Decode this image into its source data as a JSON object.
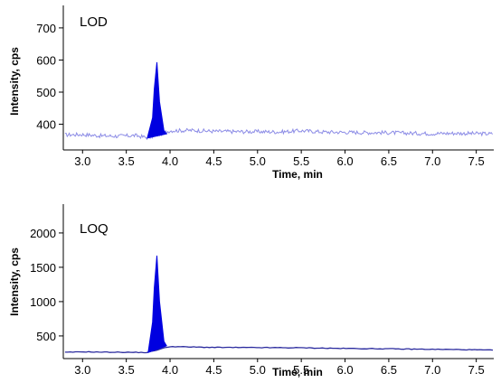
{
  "chart_data": [
    {
      "type": "line",
      "title": "LOD",
      "xlabel": "Time, min",
      "ylabel": "Intensity, cps",
      "xlim": [
        2.78,
        7.7
      ],
      "ylim": [
        320,
        770
      ],
      "x_ticks": [
        3.0,
        3.5,
        4.0,
        4.5,
        5.0,
        5.5,
        6.0,
        6.5,
        7.0,
        7.5
      ],
      "x_tick_labels": [
        "3.0",
        "3.5",
        "4.0",
        "4.5",
        "5.0",
        "5.5",
        "6.0",
        "6.5",
        "7.0",
        "7.5"
      ],
      "y_ticks": [
        400,
        500,
        600,
        700
      ],
      "y_tick_labels": [
        "400",
        "500",
        "600",
        "700"
      ],
      "grid": false,
      "colors": {
        "baseline": "#8c8ce6",
        "peak": "#0000e0"
      },
      "series": [
        {
          "kind": "baseline",
          "x": [
            2.8,
            3.0,
            3.2,
            3.4,
            3.6,
            3.75,
            4.0,
            4.25,
            4.5,
            4.75,
            5.0,
            5.25,
            5.5,
            5.75,
            6.0,
            6.25,
            6.5,
            6.75,
            7.0,
            7.25,
            7.5,
            7.69
          ],
          "values": [
            367,
            368,
            364,
            363,
            365,
            358,
            380,
            381,
            378,
            377,
            377,
            376,
            380,
            376,
            375,
            374,
            374,
            372,
            371,
            372,
            371,
            370
          ]
        },
        {
          "kind": "peak",
          "x": [
            3.74,
            3.8,
            3.82,
            3.85,
            3.88,
            3.93,
            3.96
          ],
          "values": [
            357,
            420,
            510,
            593,
            470,
            380,
            370
          ]
        }
      ]
    },
    {
      "type": "line",
      "title": "LOQ",
      "xlabel": "Time, min",
      "ylabel": "Intensity, cps",
      "xlim": [
        2.78,
        7.7
      ],
      "ylim": [
        170,
        2420
      ],
      "x_ticks": [
        3.0,
        3.5,
        4.0,
        4.5,
        5.0,
        5.5,
        6.0,
        6.5,
        7.0,
        7.5
      ],
      "x_tick_labels": [
        "3.0",
        "3.5",
        "4.0",
        "4.5",
        "5.0",
        "5.5",
        "6.0",
        "6.5",
        "7.0",
        "7.5"
      ],
      "y_ticks": [
        500,
        1000,
        1500,
        2000
      ],
      "y_tick_labels": [
        "500",
        "1000",
        "1500",
        "2000"
      ],
      "grid": false,
      "colors": {
        "baseline": "#2a2a9e",
        "peak": "#0000e0"
      },
      "series": [
        {
          "kind": "baseline",
          "x": [
            2.8,
            3.0,
            3.25,
            3.5,
            3.74,
            4.0,
            4.25,
            4.5,
            5.0,
            5.5,
            6.0,
            6.5,
            7.0,
            7.5,
            7.69
          ],
          "values": [
            260,
            268,
            264,
            262,
            258,
            345,
            338,
            333,
            330,
            327,
            317,
            312,
            305,
            298,
            292
          ]
        },
        {
          "kind": "peak",
          "x": [
            3.75,
            3.8,
            3.82,
            3.85,
            3.88,
            3.93,
            3.96
          ],
          "values": [
            258,
            700,
            1200,
            1670,
            1000,
            420,
            355
          ]
        }
      ]
    }
  ]
}
